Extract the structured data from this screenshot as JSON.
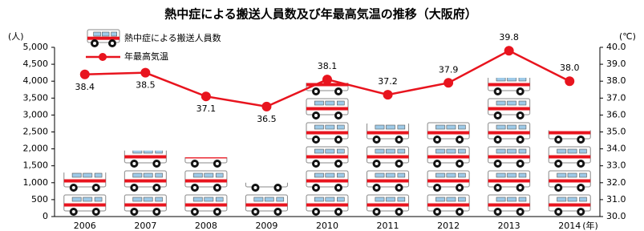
{
  "chart_data": {
    "type": "bar",
    "title": "熱中症による搬送人員数及び年最高気温の推移（大阪府）",
    "y_label": "(人)",
    "y2_label": "(℃)",
    "x_label": "(年)",
    "categories": [
      "2006",
      "2007",
      "2008",
      "2009",
      "2010",
      "2011",
      "2012",
      "2013",
      "2014"
    ],
    "series": [
      {
        "name": "熱中症による搬送人員数",
        "type": "bar",
        "color": "#e8141e",
        "values": [
          1300,
          1950,
          1750,
          1000,
          3950,
          2750,
          2800,
          4100,
          2550
        ]
      },
      {
        "name": "年最高気温",
        "type": "line",
        "axis": "y2",
        "color": "#e8141e",
        "values": [
          38.4,
          38.5,
          37.1,
          36.5,
          38.1,
          37.2,
          37.9,
          39.8,
          38.0
        ],
        "value_labels": [
          "38.4",
          "38.5",
          "37.1",
          "36.5",
          "38.1",
          "37.2",
          "37.9",
          "39.8",
          "38.0"
        ]
      }
    ],
    "ylim": [
      0,
      5000
    ],
    "yticks": [
      0,
      {
        "value": 500,
        "label": "500"
      },
      {
        "value": 1000,
        "label": "1,000"
      },
      {
        "value": 1500,
        "label": "1,500"
      },
      {
        "value": 2000,
        "label": "2,000"
      },
      {
        "value": 2500,
        "label": "2,500"
      },
      {
        "value": 3000,
        "label": "3,000"
      },
      {
        "value": 3500,
        "label": "3,500"
      },
      {
        "value": 4000,
        "label": "4,000"
      },
      {
        "value": 4500,
        "label": "4,500"
      },
      {
        "value": 5000,
        "label": "5,000"
      }
    ],
    "y2lim": [
      30,
      40
    ],
    "y2ticks": [
      {
        "value": 30,
        "label": "30.0"
      },
      {
        "value": 31,
        "label": "31.0"
      },
      {
        "value": 32,
        "label": "32.0"
      },
      {
        "value": 33,
        "label": "33.0"
      },
      {
        "value": 34,
        "label": "34.0"
      },
      {
        "value": 35,
        "label": "35.0"
      },
      {
        "value": 36,
        "label": "36.0"
      },
      {
        "value": 37,
        "label": "37.0"
      },
      {
        "value": 38,
        "label": "38.0"
      },
      {
        "value": 39,
        "label": "39.0"
      },
      {
        "value": 40,
        "label": "40.0"
      }
    ]
  }
}
